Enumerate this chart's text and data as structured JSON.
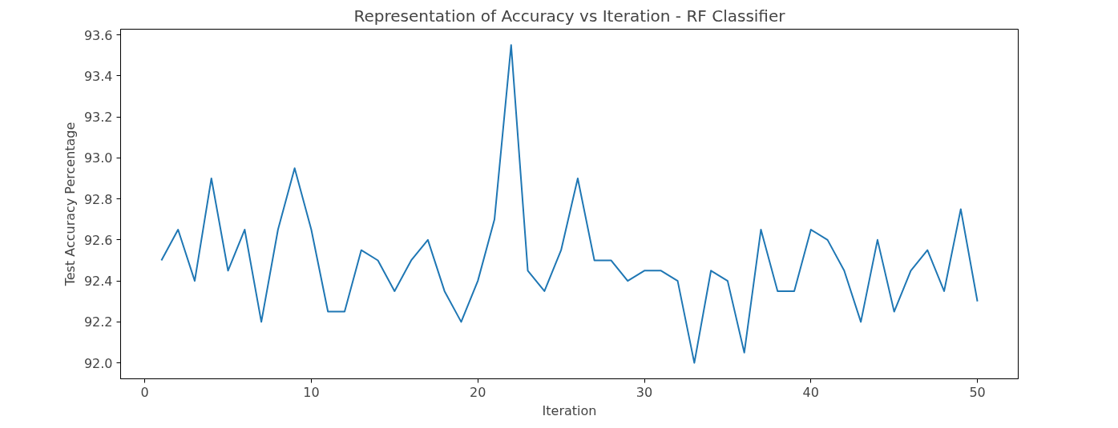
{
  "chart_data": {
    "type": "line",
    "title": "Representation of Accuracy vs Iteration - RF Classifier",
    "xlabel": "Iteration",
    "ylabel": "Test Accuracy Percentage",
    "x": [
      1,
      2,
      3,
      4,
      5,
      6,
      7,
      8,
      9,
      10,
      11,
      12,
      13,
      14,
      15,
      16,
      17,
      18,
      19,
      20,
      21,
      22,
      23,
      24,
      25,
      26,
      27,
      28,
      29,
      30,
      31,
      32,
      33,
      34,
      35,
      36,
      37,
      38,
      39,
      40,
      41,
      42,
      43,
      44,
      45,
      46,
      47,
      48,
      49,
      50
    ],
    "series": [
      {
        "color": "#1f77b4",
        "values": [
          92.5,
          92.65,
          92.4,
          92.9,
          92.45,
          92.65,
          92.2,
          92.65,
          92.95,
          92.65,
          92.25,
          92.25,
          92.55,
          92.5,
          92.35,
          92.5,
          92.6,
          92.35,
          92.2,
          92.4,
          92.7,
          93.55,
          92.45,
          92.35,
          92.55,
          92.9,
          92.5,
          92.5,
          92.4,
          92.45,
          92.45,
          92.4,
          92.0,
          92.45,
          92.4,
          92.05,
          92.65,
          92.35,
          92.35,
          92.65,
          92.6,
          92.45,
          92.2,
          92.6,
          92.25,
          92.45,
          92.55,
          92.35,
          92.75,
          92.3
        ]
      }
    ],
    "xlim": [
      -1.45,
      52.45
    ],
    "ylim": [
      91.9225,
      93.6275
    ],
    "xticks": [
      0,
      10,
      20,
      30,
      40,
      50
    ],
    "yticks": [
      {
        "value": 92.0,
        "label": "92.0"
      },
      {
        "value": 92.2,
        "label": "92.2"
      },
      {
        "value": 92.4,
        "label": "92.4"
      },
      {
        "value": 92.6,
        "label": "92.6"
      },
      {
        "value": 92.8,
        "label": "92.8"
      },
      {
        "value": 93.0,
        "label": "93.0"
      },
      {
        "value": 93.2,
        "label": "93.2"
      },
      {
        "value": 93.4,
        "label": "93.4"
      },
      {
        "value": 93.6,
        "label": "93.6"
      }
    ],
    "grid": false,
    "line_style": "solid"
  }
}
